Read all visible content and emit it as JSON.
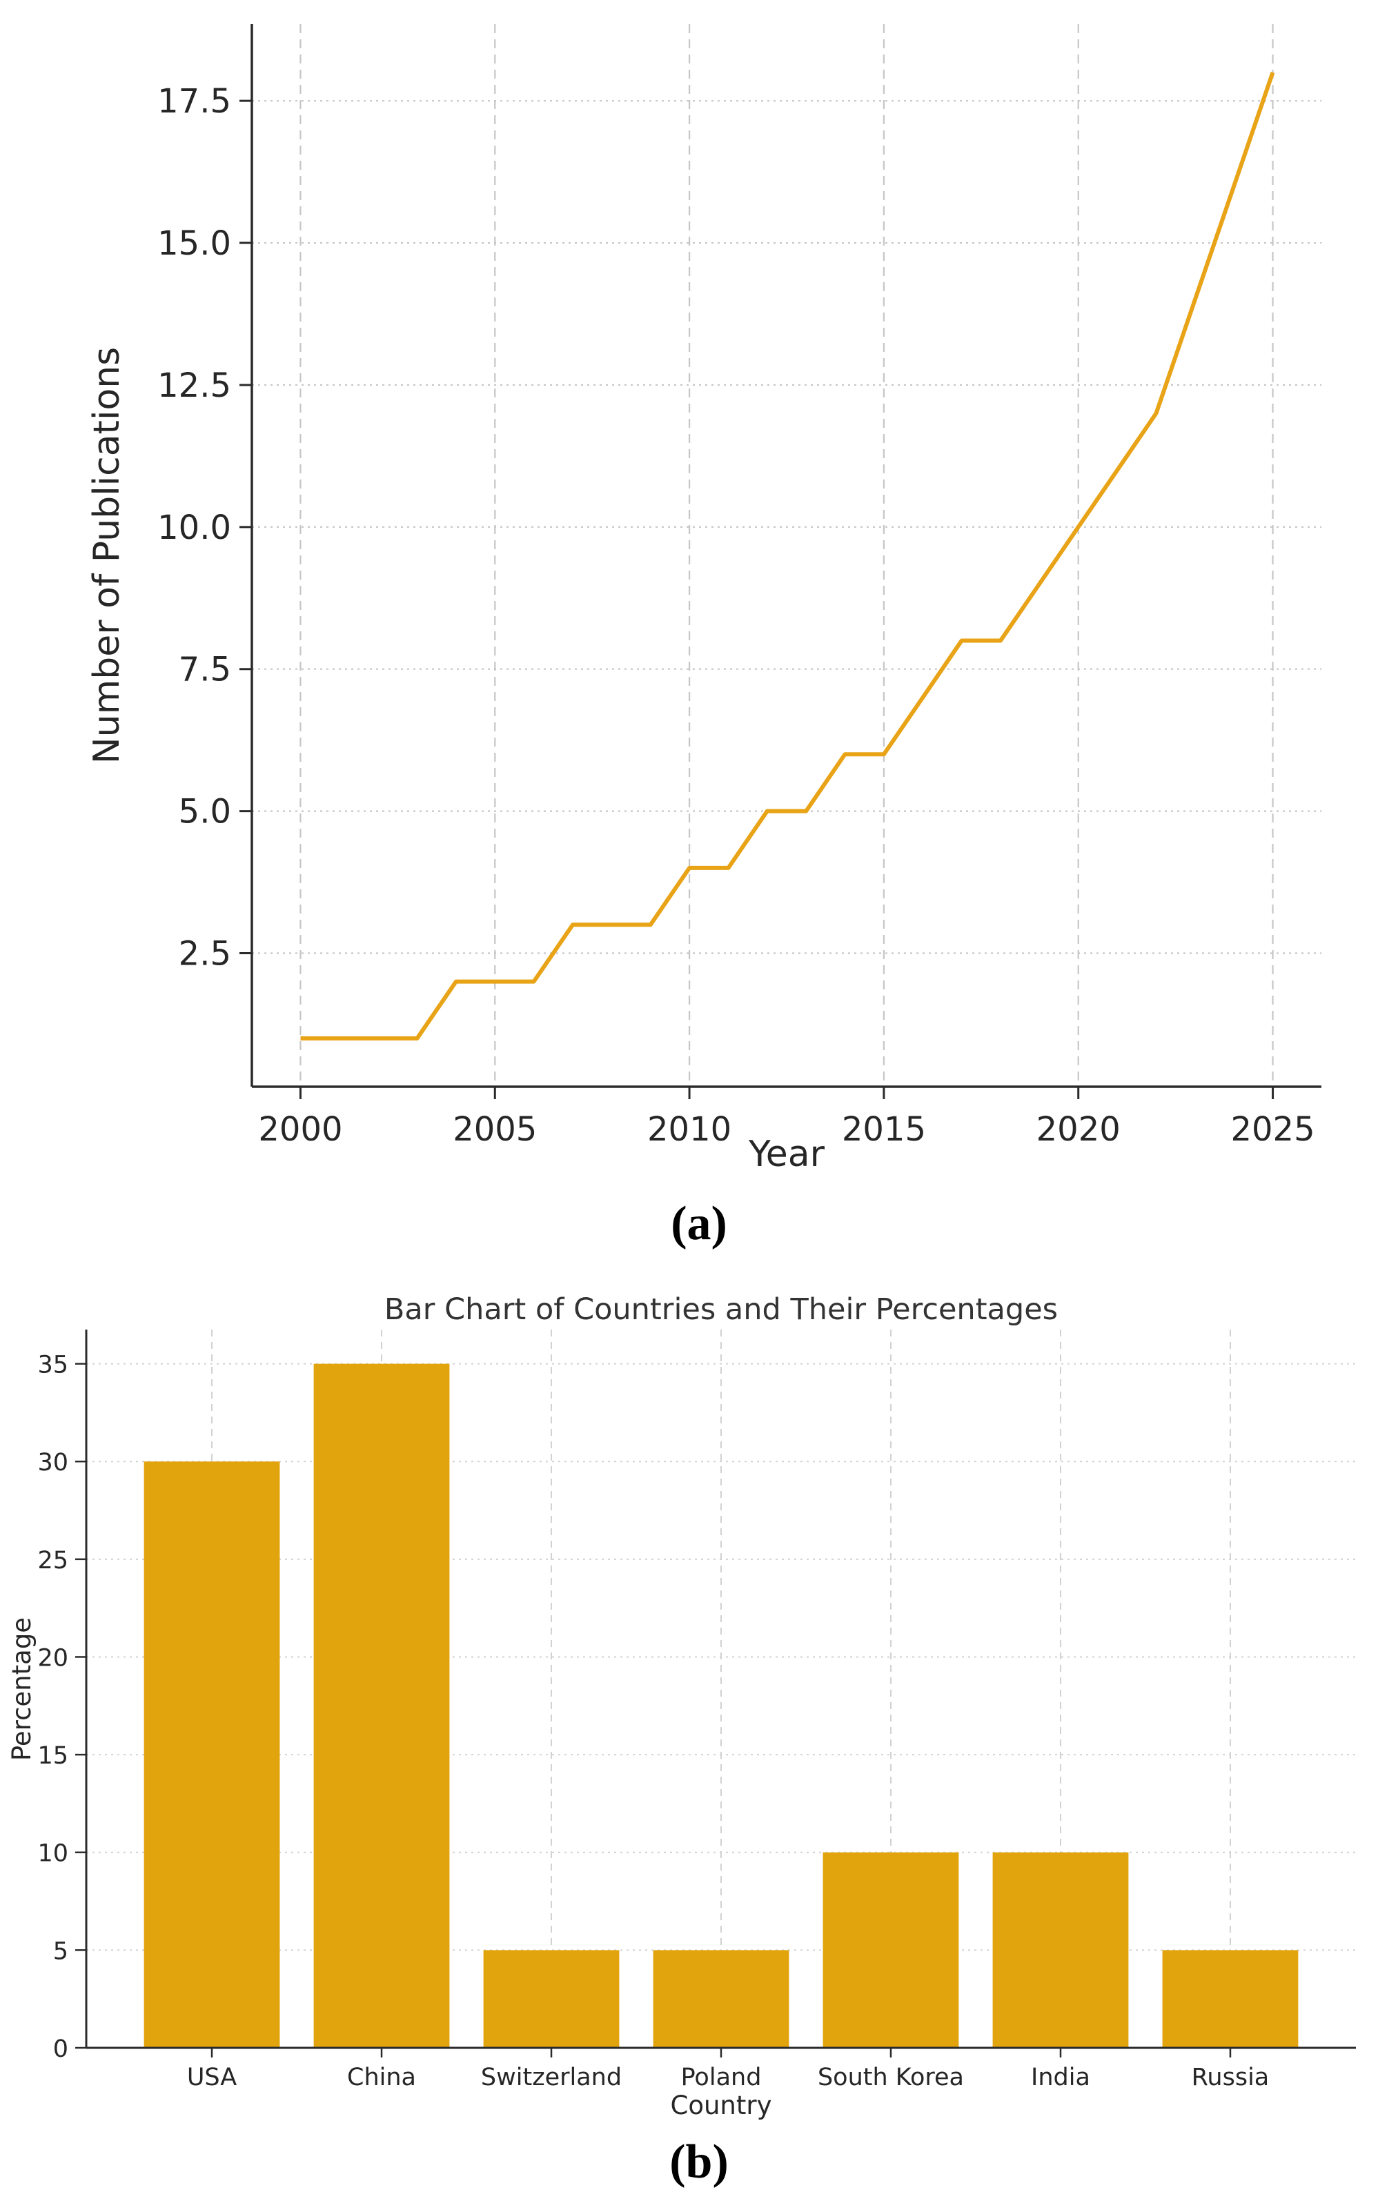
{
  "figure": {
    "caption_a": "(a)",
    "caption_b": "(b)"
  },
  "chart_data": [
    {
      "type": "line",
      "title": "",
      "xlabel": "Year",
      "ylabel": "Number of Publications",
      "x": [
        2000,
        2001,
        2002,
        2003,
        2004,
        2005,
        2006,
        2007,
        2008,
        2009,
        2010,
        2011,
        2012,
        2013,
        2014,
        2015,
        2016,
        2017,
        2018,
        2019,
        2020,
        2021,
        2022,
        2023,
        2024,
        2025
      ],
      "y": [
        1,
        1,
        1,
        1,
        2,
        2,
        2,
        3,
        3,
        3,
        4,
        4,
        5,
        5,
        6,
        6,
        7,
        8,
        8,
        9,
        10,
        11,
        12,
        14,
        16,
        18
      ],
      "xticks": [
        2000,
        2005,
        2010,
        2015,
        2020,
        2025
      ],
      "yticks": [
        2.5,
        5.0,
        7.5,
        10.0,
        12.5,
        15.0,
        17.5
      ],
      "ytick_labels": [
        "2.5",
        "5.0",
        "7.5",
        "10.0",
        "12.5",
        "15.0",
        "17.5"
      ],
      "xlim": [
        1998.75,
        2026.25
      ],
      "ylim": [
        0.15,
        18.85
      ],
      "grid": true,
      "legend": "none",
      "line_color": "#E8A317"
    },
    {
      "type": "bar",
      "title": "Bar Chart of Countries and Their Percentages",
      "xlabel": "Country",
      "ylabel": "Percentage",
      "categories": [
        "USA",
        "China",
        "Switzerland",
        "Poland",
        "South Korea",
        "India",
        "Russia"
      ],
      "values": [
        30,
        35,
        5,
        5,
        10,
        10,
        5
      ],
      "yticks": [
        0,
        5,
        10,
        15,
        20,
        25,
        30,
        35
      ],
      "ylim": [
        0,
        36.75
      ],
      "grid": true,
      "legend": "none",
      "bar_color": "#E2A40D"
    }
  ],
  "colors": {
    "grid_a": "#C6C6C6",
    "grid_b": "#D2D2D2",
    "axis": "#2B2B2B",
    "text": "#262626"
  }
}
